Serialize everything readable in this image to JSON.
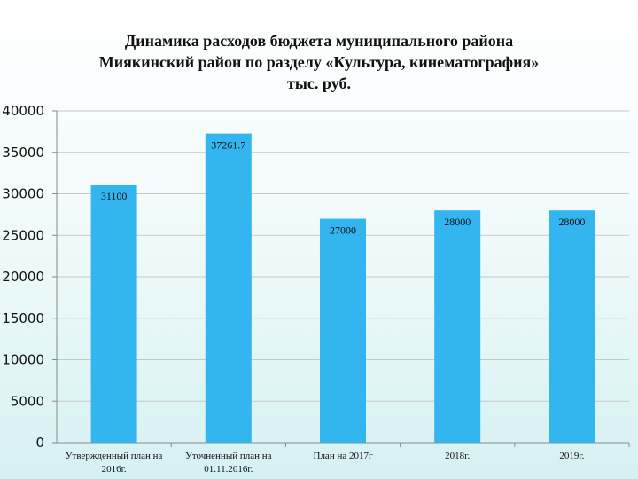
{
  "chart_data": {
    "type": "bar",
    "title_lines": [
      "Динамика расходов бюджета муниципального района",
      "Мияки­нский район по разделу «Культура, кинематография»",
      "тыс. руб."
    ],
    "categories": [
      [
        "Утвержденный план на",
        "2016г."
      ],
      [
        "Уточненный план на",
        "01.11.2016г."
      ],
      [
        "План на 2017г"
      ],
      [
        "2018г."
      ],
      [
        "2019г."
      ]
    ],
    "values": [
      31100,
      37261.7,
      27000,
      28000,
      28000
    ],
    "data_labels": [
      "31100",
      "37261.7",
      "27000",
      "28000",
      "28000"
    ],
    "yticks": [
      "0",
      "5000",
      "10000",
      "15000",
      "20000",
      "25000",
      "30000",
      "35000",
      "40000"
    ],
    "ylim": [
      0,
      40000
    ],
    "grid": true,
    "legend": "none",
    "colors": {
      "bar": "#33b5f0",
      "grid": "#c7c7c7",
      "axis": "#888888"
    }
  }
}
